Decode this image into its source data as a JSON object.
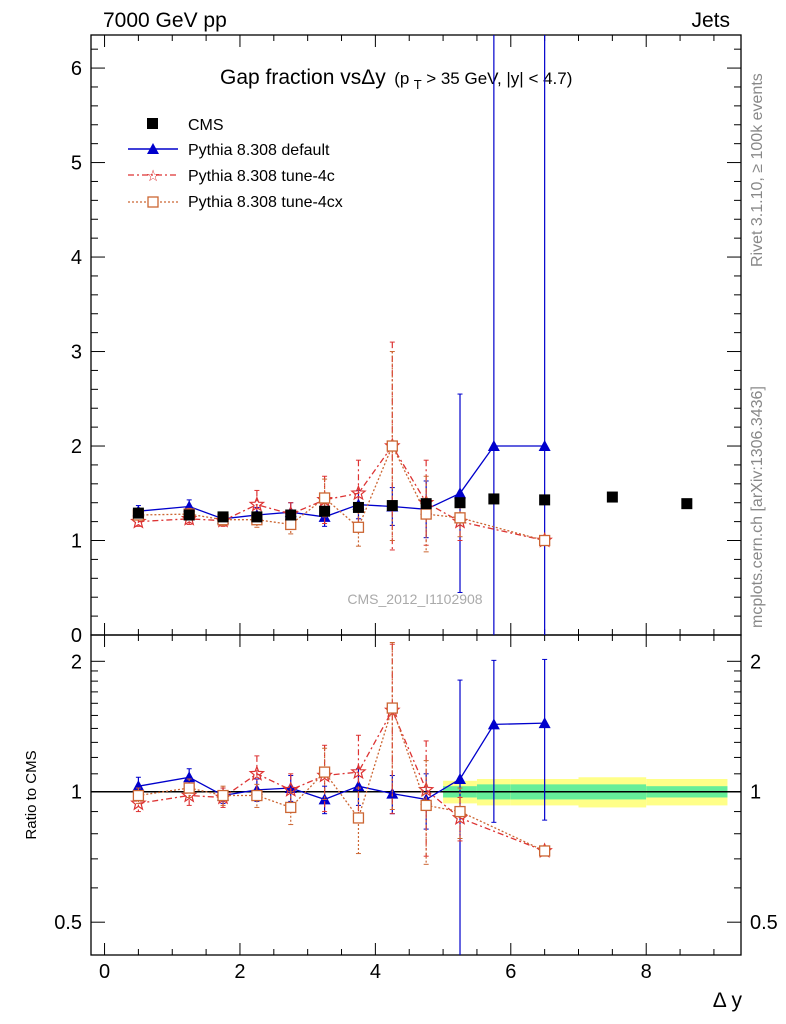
{
  "header": {
    "left_title": "7000 GeV pp",
    "right_title": "Jets"
  },
  "side_labels": {
    "rivet": "Rivet 3.1.10, ≥ 100k events",
    "mcplots": "mcplots.cern.ch [arXiv:1306.3436]"
  },
  "plot_title": {
    "main": "Gap fraction vsΔy",
    "cut_prefix": "(p",
    "cut_sub": "T",
    "cut_rest": " > 35 GeV, |y| < 4.7)"
  },
  "watermark": "CMS_2012_I1102908",
  "colors": {
    "cms": "#000000",
    "default": "#0000cc",
    "tune4c": "#dd3333",
    "tune4cx": "#cc6633",
    "band_inner": "#66ee99",
    "band_outer": "#ffff88"
  },
  "chart_data": [
    {
      "type": "scatter",
      "panel": "main",
      "x_range": [
        -0.2,
        9.4
      ],
      "ylim": [
        0,
        6.35
      ],
      "y_ticks": [
        "0",
        "1",
        "2",
        "3",
        "4",
        "5",
        "6"
      ],
      "series": [
        {
          "name": "CMS",
          "marker": "square",
          "x": [
            0.5,
            1.25,
            1.75,
            2.25,
            2.75,
            3.25,
            3.75,
            4.25,
            4.75,
            5.25,
            5.75,
            6.5,
            7.5,
            8.6
          ],
          "y": [
            1.29,
            1.27,
            1.25,
            1.25,
            1.27,
            1.31,
            1.35,
            1.37,
            1.39,
            1.4,
            1.44,
            1.43,
            1.46,
            1.39
          ]
        },
        {
          "name": "Pythia 8.308 default",
          "marker": "triangle",
          "x": [
            0.5,
            1.25,
            1.75,
            2.25,
            2.75,
            3.25,
            3.75,
            4.25,
            4.75,
            5.25,
            5.75,
            6.5
          ],
          "y": [
            1.31,
            1.36,
            1.23,
            1.27,
            1.3,
            1.25,
            1.38,
            1.36,
            1.33,
            1.5,
            2.0,
            2.0
          ],
          "err": [
            0.06,
            0.07,
            0.05,
            0.08,
            0.1,
            0.1,
            0.15,
            0.2,
            0.3,
            1.05,
            4.5,
            4.5
          ]
        },
        {
          "name": "Pythia 8.308 tune-4c",
          "marker": "star",
          "x": [
            0.5,
            1.25,
            1.75,
            2.25,
            2.75,
            3.25,
            3.75,
            4.25,
            4.75,
            5.25,
            6.5
          ],
          "y": [
            1.2,
            1.23,
            1.21,
            1.38,
            1.28,
            1.43,
            1.5,
            2.0,
            1.4,
            1.2,
            1.0
          ],
          "err": [
            0.05,
            0.06,
            0.06,
            0.15,
            0.12,
            0.25,
            0.35,
            1.1,
            0.45,
            0.2,
            0.01
          ]
        },
        {
          "name": "Pythia 8.308 tune-4cx",
          "marker": "open-square",
          "x": [
            0.5,
            1.25,
            1.75,
            2.25,
            2.75,
            3.25,
            3.75,
            4.25,
            4.75,
            5.25,
            6.5
          ],
          "y": [
            1.27,
            1.28,
            1.22,
            1.22,
            1.17,
            1.45,
            1.14,
            2.0,
            1.28,
            1.24,
            1.0
          ],
          "err": [
            0.05,
            0.06,
            0.06,
            0.08,
            0.1,
            0.2,
            0.2,
            1.0,
            0.4,
            0.2,
            0.01
          ]
        }
      ],
      "legend_placement": "top-left"
    },
    {
      "type": "scatter",
      "panel": "ratio",
      "ylabel": "Ratio to CMS",
      "xlabel": "Δ y",
      "scale": "log",
      "x_range": [
        -0.2,
        9.4
      ],
      "ylim": [
        0.42,
        2.3
      ],
      "x_ticks": [
        "0",
        "2",
        "4",
        "6",
        "8"
      ],
      "y_ticks": [
        "0.5",
        "1",
        "2"
      ],
      "band": {
        "x_edges": [
          5.0,
          5.5,
          6.0,
          7.0,
          8.0,
          9.2
        ],
        "inner": [
          0.03,
          0.04,
          0.04,
          0.04,
          0.03
        ],
        "outer": [
          0.06,
          0.07,
          0.07,
          0.08,
          0.07
        ]
      },
      "series": [
        {
          "name": "Pythia 8.308 default",
          "x": [
            0.5,
            1.25,
            1.75,
            2.25,
            2.75,
            3.25,
            3.75,
            4.25,
            4.75,
            5.25,
            5.75,
            6.5
          ],
          "y": [
            1.03,
            1.08,
            0.98,
            1.01,
            1.02,
            0.96,
            1.03,
            0.99,
            0.96,
            1.07,
            1.43,
            1.44
          ],
          "err": [
            0.05,
            0.05,
            0.04,
            0.06,
            0.07,
            0.07,
            0.1,
            0.1,
            0.14,
            0.74,
            0.58,
            0.58
          ]
        },
        {
          "name": "Pythia 8.308 tune-4c",
          "x": [
            0.5,
            1.25,
            1.75,
            2.25,
            2.75,
            3.25,
            3.75,
            4.25,
            4.75,
            5.25,
            6.5
          ],
          "y": [
            0.94,
            0.98,
            0.97,
            1.1,
            1.01,
            1.09,
            1.11,
            1.54,
            1.01,
            0.87,
            0.73
          ],
          "err": [
            0.04,
            0.05,
            0.05,
            0.11,
            0.09,
            0.19,
            0.24,
            0.65,
            0.3,
            0.1,
            0.01
          ]
        },
        {
          "name": "Pythia 8.308 tune-4cx",
          "x": [
            0.5,
            1.25,
            1.75,
            2.25,
            2.75,
            3.25,
            3.75,
            4.25,
            4.75,
            5.25,
            6.5
          ],
          "y": [
            0.98,
            1.02,
            0.98,
            0.98,
            0.92,
            1.11,
            0.87,
            1.56,
            0.93,
            0.9,
            0.73
          ],
          "err": [
            0.04,
            0.05,
            0.05,
            0.06,
            0.08,
            0.15,
            0.15,
            0.65,
            0.25,
            0.12,
            0.01
          ]
        }
      ]
    }
  ]
}
